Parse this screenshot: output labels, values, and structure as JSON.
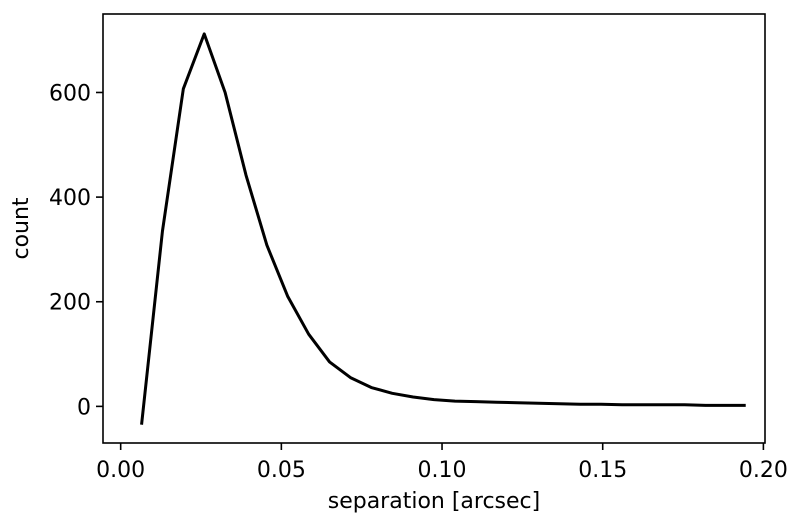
{
  "chart_data": {
    "type": "line",
    "title": "",
    "xlabel": "separation [arcsec]",
    "ylabel": "count",
    "xlim": [
      -0.0055,
      0.2005
    ],
    "ylim": [
      -70,
      750
    ],
    "xticks": [
      0.0,
      0.05,
      0.1,
      0.15,
      0.2
    ],
    "xtick_labels": [
      "0.00",
      "0.05",
      "0.10",
      "0.15",
      "0.20"
    ],
    "yticks": [
      0,
      200,
      400,
      600
    ],
    "ytick_labels": [
      "0",
      "200",
      "400",
      "600"
    ],
    "grid": false,
    "legend": false,
    "line_color": "#000000",
    "series": [
      {
        "x": [
          0.0065,
          0.013,
          0.0195,
          0.026,
          0.0325,
          0.039,
          0.0455,
          0.052,
          0.0585,
          0.065,
          0.0715,
          0.078,
          0.0845,
          0.091,
          0.0975,
          0.104,
          0.1105,
          0.117,
          0.1235,
          0.13,
          0.1365,
          0.143,
          0.1495,
          0.156,
          0.1625,
          0.169,
          0.1755,
          0.182,
          0.1885,
          0.1945
        ],
        "y": [
          -35,
          335,
          607,
          712,
          600,
          442,
          308,
          210,
          138,
          85,
          55,
          36,
          25,
          18,
          13,
          10,
          9,
          8,
          7,
          6,
          5,
          4,
          4,
          3,
          3,
          3,
          3,
          2,
          2,
          2
        ]
      }
    ]
  }
}
